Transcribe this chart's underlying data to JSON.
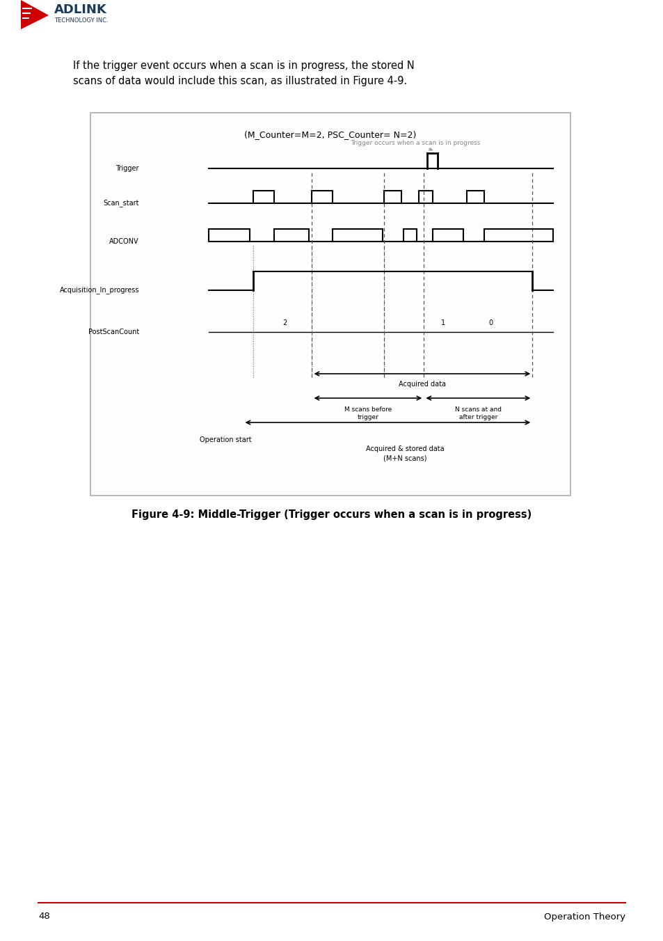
{
  "page_bg": "#ffffff",
  "title_text": "(M_Counter=M=2, PSC_Counter= N=2)",
  "title_fontsize": 9,
  "body_text": "If the trigger event occurs when a scan is in progress, the stored N\nscans of data would include this scan, as illustrated in Figure 4-9.",
  "body_fontsize": 10.5,
  "caption_text": "Figure 4-9: Middle-Trigger (Trigger occurs when a scan is in progress)",
  "caption_fontsize": 10.5,
  "annotation_text": "Trigger occurs when a scan is in progress",
  "annotation_fontsize": 6.5,
  "page_number": "48",
  "footer_text": "Operation Theory",
  "signal_labels": [
    "Trigger",
    "Scan_start",
    "ADCONV",
    "Acquisition_In_progress",
    "PostScanCount"
  ],
  "signal_label_fontsize": 7,
  "diagram_bg": "#f8f8f8",
  "line_color": "#000000",
  "dashed_color": "#555555",
  "logo_text_adlink": "ADLINK",
  "logo_text_tech": "TECHNOLOGY INC.",
  "red_color": "#cc0000"
}
